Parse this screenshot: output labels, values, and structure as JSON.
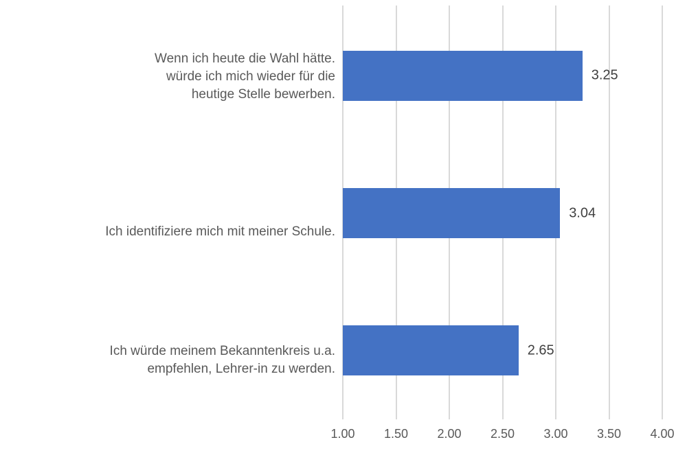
{
  "chart_data": {
    "type": "bar",
    "orientation": "horizontal",
    "title": "",
    "xlabel": "",
    "ylabel": "",
    "categories": [
      "Wenn ich heute die Wahl hätte.\nwürde ich mich wieder für die\nheutige Stelle bewerben.",
      "Ich identifiziere mich mit meiner Schule.",
      "Ich würde meinem Bekanntenkreis u.a.\nempfehlen, Lehrer-in zu werden."
    ],
    "values": [
      3.25,
      3.04,
      2.65
    ],
    "data_labels": [
      "3.25",
      "3.04",
      "2.65"
    ],
    "xlim": [
      1.0,
      4.0
    ],
    "x_ticks": [
      "1.00",
      "1.50",
      "2.00",
      "2.50",
      "3.00",
      "3.50",
      "4.00"
    ],
    "grid": true,
    "legend": false,
    "colors": {
      "bar": "#4472C4",
      "gridline": "#D9D9D9",
      "category_label": "#595959",
      "tick_label": "#595959",
      "data_label": "#404040",
      "background": "#FFFFFF"
    }
  }
}
